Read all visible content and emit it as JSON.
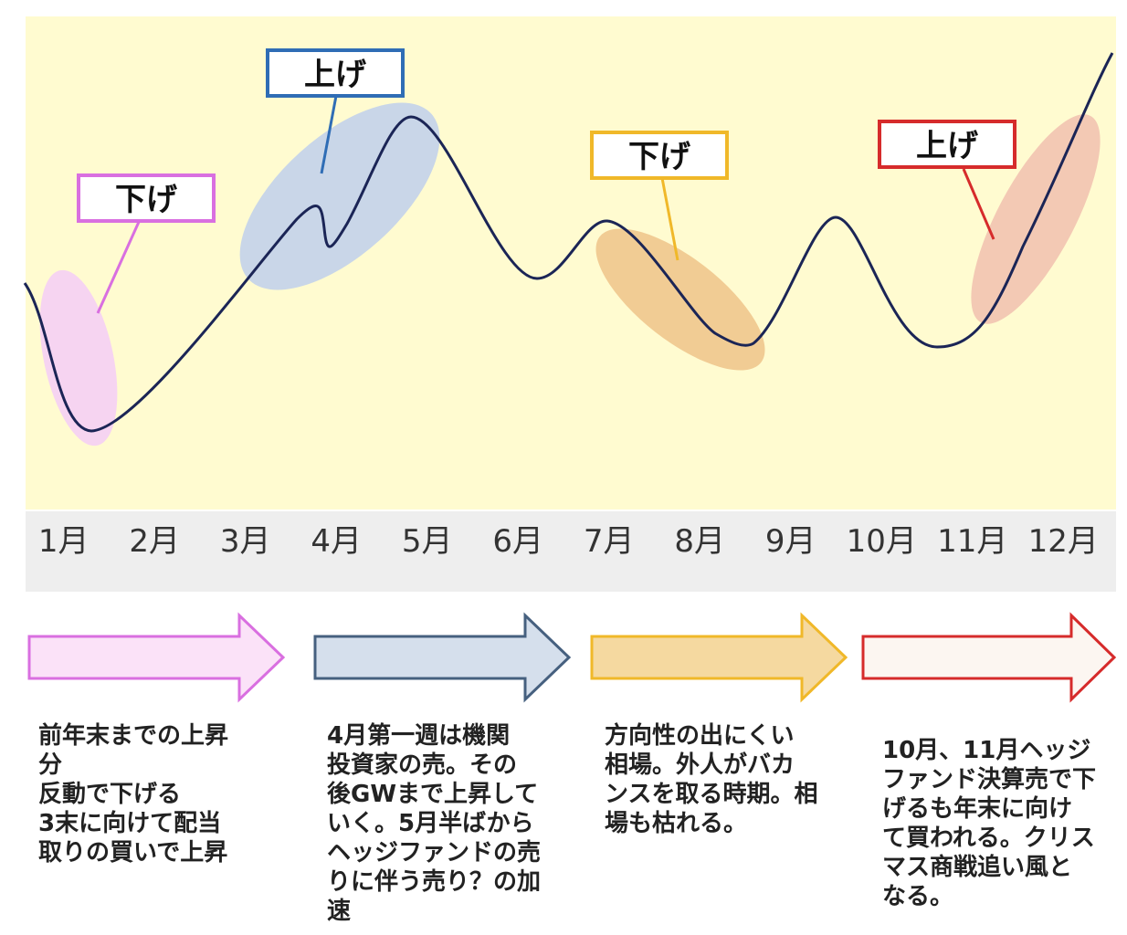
{
  "months": [
    "1月",
    "2月",
    "3月",
    "4月",
    "5月",
    "6月",
    "7月",
    "8月",
    "9月",
    "10月",
    "11月",
    "12月"
  ],
  "callouts": [
    {
      "label": "下げ",
      "color": "#d96fe0"
    },
    {
      "label": "上げ",
      "color": "#2f6db5"
    },
    {
      "label": "下げ",
      "color": "#f0b829"
    },
    {
      "label": "上げ",
      "color": "#d62b2b"
    }
  ],
  "highlights": {
    "pink": "#f6d4f1",
    "blue": "#c9d6e8",
    "orange": "#f1cc94",
    "salmon": "#f3c9b4"
  },
  "colors": {
    "plot_background": "#fffbd0",
    "month_band": "#eeeeee",
    "line": "#1b2556"
  },
  "arrows": [
    {
      "fill": "#fbe2f8",
      "stroke": "#d96fe0"
    },
    {
      "fill": "#d5dfec",
      "stroke": "#46607f"
    },
    {
      "fill": "#f5d9a0",
      "stroke": "#f0b829"
    },
    {
      "fill": "#fcf6f1",
      "stroke": "#d62b2b"
    }
  ],
  "descriptions": [
    {
      "lines": [
        "前年末までの上昇",
        "分",
        "反動で下げる",
        "3末に向けて配当",
        "取りの買いで上昇"
      ]
    },
    {
      "lines": [
        "4月第一週は機関",
        "投資家の売。その",
        "後GWまで上昇して",
        "いく。5月半ばから",
        "ヘッジファンドの売",
        "りに伴う売り？の加",
        "速"
      ]
    },
    {
      "lines": [
        "方向性の出にくい",
        "相場。外人がバカ",
        "ンスを取る時期。相",
        "場も枯れる。"
      ]
    },
    {
      "lines": [
        "10月、11月ヘッジ",
        "ファンド決算売で下",
        "げるも年末に向け",
        "て買われる。クリス",
        "マス商戦追い風と",
        "なる。"
      ]
    }
  ]
}
